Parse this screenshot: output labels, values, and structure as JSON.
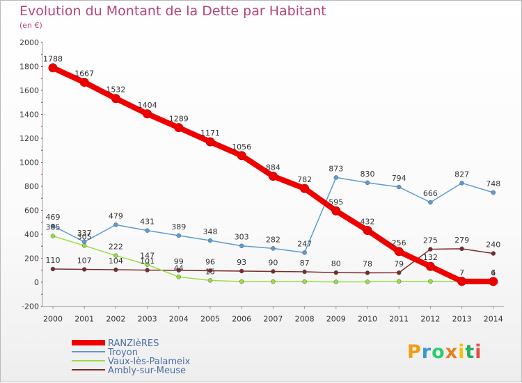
{
  "header": {
    "title": "Evolution du Montant de la Dette par Habitant",
    "subtitle": "(en €)"
  },
  "chart_data": {
    "type": "line",
    "title": "Evolution du Montant de la Dette par Habitant",
    "subtitle": "(en €)",
    "xlabel": "",
    "ylabel": "",
    "x": [
      "2000",
      "2001",
      "2002",
      "2003",
      "2004",
      "2005",
      "2006",
      "2007",
      "2008",
      "2009",
      "2010",
      "2011",
      "2012",
      "2013",
      "2014"
    ],
    "ylim": [
      -200,
      2000
    ],
    "yticks": [
      "-200",
      "0",
      "200",
      "400",
      "600",
      "800",
      "1000",
      "1200",
      "1400",
      "1600",
      "1800",
      "2000"
    ],
    "grid": false,
    "legend_position": "bottom-left",
    "series": [
      {
        "name": "RANZIèRES",
        "color": "#ee0000",
        "values": [
          1788,
          1667,
          1532,
          1404,
          1289,
          1171,
          1056,
          884,
          782,
          595,
          432,
          256,
          132,
          7,
          6
        ],
        "labels": [
          "1788",
          "1667",
          "1532",
          "1404",
          "1289",
          "1171",
          "1056",
          "884",
          "782",
          "595",
          "432",
          "256",
          "132",
          "7",
          "6"
        ]
      },
      {
        "name": "Troyon",
        "color": "#5b9bd5",
        "values": [
          469,
          337,
          479,
          431,
          389,
          348,
          303,
          282,
          247,
          873,
          830,
          794,
          666,
          827,
          748
        ],
        "labels": [
          "469",
          "337",
          "479",
          "431",
          "389",
          "348",
          "303",
          "282",
          "247",
          "873",
          "830",
          "794",
          "666",
          "827",
          "748"
        ]
      },
      {
        "name": "Vaux-lès-Palameix",
        "color": "#99dd44",
        "values": [
          385,
          305,
          222,
          147,
          44,
          15,
          5,
          5,
          5,
          2,
          3,
          7,
          7,
          7,
          4
        ],
        "labels": [
          "385",
          "305",
          "222",
          "147",
          "44",
          "15",
          "",
          "",
          "",
          "",
          "",
          "",
          "",
          "",
          "4"
        ]
      },
      {
        "name": "Ambly-sur-Meuse",
        "color": "#7a2a2a",
        "values": [
          110,
          107,
          104,
          101,
          99,
          96,
          93,
          90,
          87,
          80,
          78,
          79,
          275,
          279,
          240
        ],
        "labels": [
          "110",
          "107",
          "104",
          "101",
          "99",
          "96",
          "93",
          "90",
          "87",
          "80",
          "78",
          "79",
          "275",
          "279",
          "240"
        ]
      }
    ]
  },
  "logo": {
    "letters": [
      "P",
      "r",
      "o",
      "x",
      "i",
      "t",
      "i"
    ],
    "colors": [
      "#f39c12",
      "#3498db",
      "#2ecc71",
      "#e67e22",
      "#f1c40f",
      "#27ae60",
      "#e74c3c"
    ]
  }
}
